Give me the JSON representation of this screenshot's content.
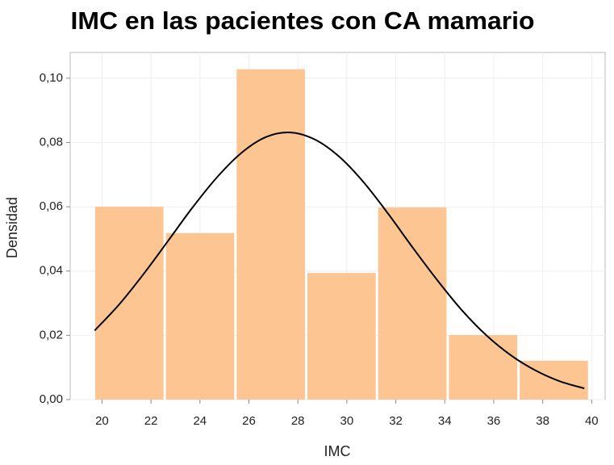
{
  "chart_data": {
    "type": "histogram",
    "title": "IMC en las pacientes con CA mamario",
    "xlabel": "IMC",
    "ylabel": "Densidad",
    "bins": [
      19.67,
      22.56,
      25.45,
      28.34,
      31.23,
      34.12,
      37.01,
      39.9
    ],
    "values": [
      0.06,
      0.0518,
      0.1028,
      0.0394,
      0.0598,
      0.0201,
      0.0121
    ],
    "color": "#fdc592",
    "curve": {
      "color": "#000000",
      "x": [
        19.7,
        20.7,
        21.7,
        22.7,
        23.7,
        24.7,
        25.7,
        26.7,
        27.7,
        28.7,
        29.7,
        30.7,
        31.7,
        32.7,
        33.7,
        34.7,
        35.7,
        36.7,
        37.7,
        38.7,
        39.7
      ],
      "y": [
        0.0215,
        0.0296,
        0.0391,
        0.0494,
        0.0598,
        0.0692,
        0.0768,
        0.0817,
        0.0831,
        0.0809,
        0.0755,
        0.0675,
        0.0577,
        0.0472,
        0.0371,
        0.0278,
        0.02,
        0.0138,
        0.0091,
        0.0057,
        0.0035
      ]
    },
    "xlim": [
      18.7,
      40.55
    ],
    "ylim": [
      0,
      0.108
    ],
    "xticks": [
      20,
      22,
      24,
      26,
      28,
      30,
      32,
      34,
      36,
      38,
      40
    ],
    "yticks": [
      {
        "value": 0,
        "label": "0,00"
      },
      {
        "value": 0.02,
        "label": "0,02"
      },
      {
        "value": 0.04,
        "label": "0,04"
      },
      {
        "value": 0.06,
        "label": "0,06"
      },
      {
        "value": 0.08,
        "label": "0,08"
      },
      {
        "value": 0.1,
        "label": "0,10"
      }
    ],
    "grid": true
  }
}
